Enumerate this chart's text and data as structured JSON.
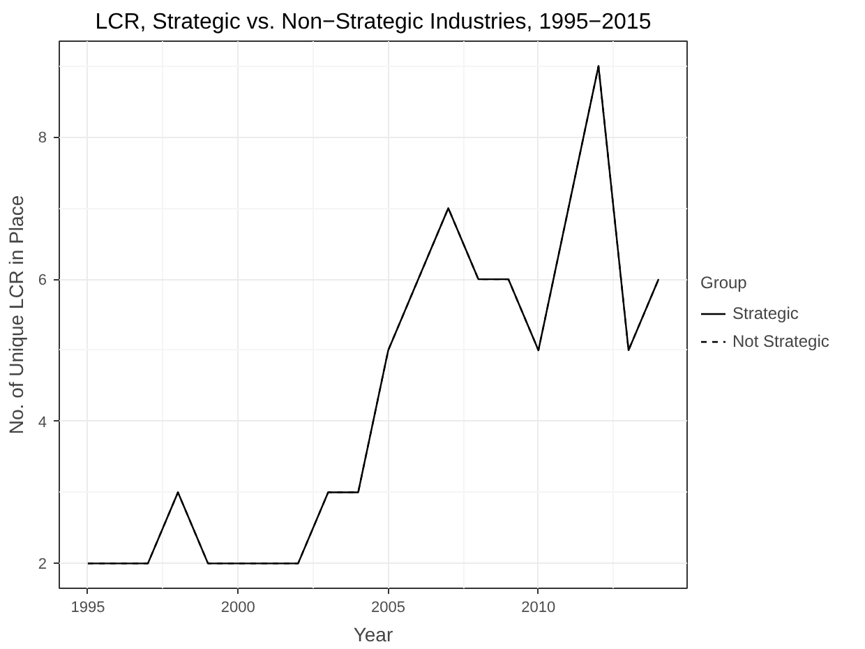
{
  "chart_data": {
    "type": "line",
    "title": "LCR, Strategic vs. Non−Strategic Industries, 1995−2015",
    "xlabel": "Year",
    "ylabel": "No. of Unique LCR in Place",
    "legend_title": "Group",
    "x": [
      1995,
      1996,
      1997,
      1998,
      1999,
      2000,
      2001,
      2002,
      2003,
      2004,
      2005,
      2006,
      2007,
      2008,
      2009,
      2010,
      2011,
      2012,
      2013,
      2014
    ],
    "series": [
      {
        "name": "Strategic",
        "color": "#000000",
        "line_style": "solid",
        "values": [
          2,
          2,
          2,
          3,
          2,
          2,
          2,
          2,
          3,
          3,
          5,
          6,
          7,
          6,
          6,
          5,
          7,
          9,
          5,
          6
        ]
      },
      {
        "name": "Not Strategic",
        "color": "#000000",
        "line_style": "dashed",
        "values": [
          2,
          2,
          2,
          3,
          2,
          2,
          2,
          2,
          3,
          3,
          5,
          6,
          7,
          6,
          6,
          5,
          7,
          9,
          5,
          6
        ]
      }
    ],
    "xlim": [
      1994.05,
      2014.95
    ],
    "xticks": [
      1995,
      2000,
      2005,
      2010
    ],
    "ylim": [
      1.65,
      9.35
    ],
    "yticks": [
      2,
      4,
      6,
      8
    ],
    "grid": true,
    "legend": "right"
  }
}
